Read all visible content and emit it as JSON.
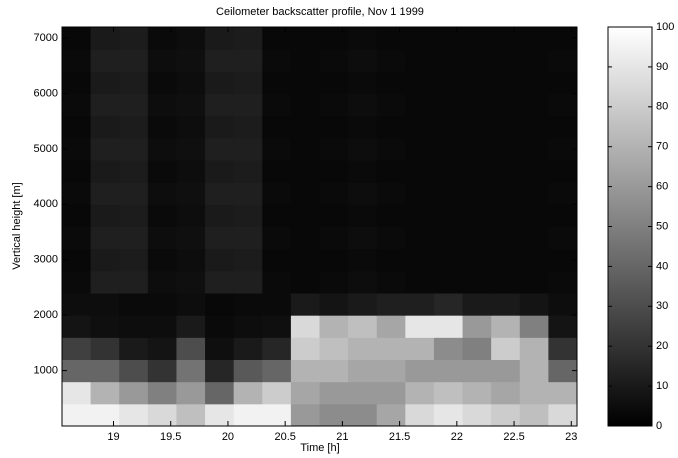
{
  "chart_data": {
    "type": "heatmap",
    "title": "Ceilometer backscatter profile, Nov 1 1999",
    "xlabel": "Time [h]",
    "ylabel": "Vertical height [m]",
    "xlim": [
      18.55,
      23.05
    ],
    "ylim": [
      0,
      7200
    ],
    "xticks": [
      19,
      19.5,
      20,
      20.5,
      21,
      21.5,
      22,
      22.5,
      23
    ],
    "yticks": [
      1000,
      2000,
      3000,
      4000,
      5000,
      6000,
      7000
    ],
    "x_edges": [
      18.55,
      18.8,
      19.05,
      19.3,
      19.55,
      19.8,
      20.05,
      20.3,
      20.55,
      20.8,
      21.05,
      21.3,
      21.55,
      21.8,
      22.05,
      22.3,
      22.55,
      22.8,
      23.05
    ],
    "y_edges": [
      0,
      400,
      800,
      1200,
      1600,
      2000,
      2400,
      2800,
      3200,
      3600,
      4000,
      4400,
      4800,
      5200,
      5600,
      6000,
      6400,
      6800,
      7200
    ],
    "z": [
      [
        95,
        95,
        90,
        85,
        75,
        90,
        95,
        95,
        60,
        55,
        55,
        65,
        85,
        90,
        85,
        80,
        75,
        85
      ],
      [
        90,
        70,
        60,
        50,
        60,
        40,
        70,
        80,
        65,
        60,
        60,
        60,
        70,
        75,
        70,
        65,
        70,
        70
      ],
      [
        40,
        40,
        30,
        20,
        45,
        15,
        35,
        40,
        70,
        70,
        65,
        65,
        60,
        60,
        60,
        60,
        70,
        40
      ],
      [
        25,
        20,
        10,
        8,
        30,
        6,
        10,
        15,
        80,
        75,
        70,
        70,
        70,
        55,
        50,
        80,
        70,
        20
      ],
      [
        8,
        6,
        5,
        5,
        10,
        4,
        5,
        6,
        85,
        70,
        75,
        65,
        90,
        90,
        60,
        70,
        50,
        8
      ],
      [
        5,
        5,
        4,
        4,
        5,
        3,
        4,
        4,
        10,
        8,
        10,
        12,
        12,
        15,
        10,
        10,
        8,
        5
      ],
      [
        4,
        12,
        12,
        5,
        6,
        12,
        12,
        4,
        3,
        4,
        5,
        4,
        3,
        3,
        3,
        3,
        3,
        4
      ],
      [
        3,
        10,
        11,
        4,
        5,
        10,
        11,
        3,
        3,
        3,
        4,
        3,
        3,
        3,
        3,
        3,
        3,
        3
      ],
      [
        4,
        12,
        12,
        5,
        6,
        12,
        12,
        4,
        3,
        4,
        5,
        4,
        3,
        3,
        3,
        3,
        3,
        4
      ],
      [
        3,
        10,
        11,
        4,
        5,
        10,
        11,
        3,
        3,
        3,
        4,
        3,
        3,
        3,
        3,
        3,
        3,
        3
      ],
      [
        4,
        12,
        12,
        5,
        6,
        12,
        12,
        4,
        3,
        4,
        5,
        4,
        3,
        3,
        3,
        3,
        3,
        4
      ],
      [
        3,
        10,
        11,
        4,
        5,
        10,
        11,
        3,
        3,
        3,
        4,
        3,
        3,
        3,
        3,
        3,
        3,
        3
      ],
      [
        4,
        12,
        12,
        5,
        6,
        12,
        12,
        4,
        3,
        4,
        5,
        4,
        3,
        3,
        3,
        3,
        3,
        4
      ],
      [
        3,
        10,
        11,
        4,
        5,
        10,
        11,
        3,
        3,
        3,
        4,
        3,
        3,
        3,
        3,
        3,
        3,
        3
      ],
      [
        4,
        12,
        12,
        5,
        6,
        12,
        12,
        4,
        3,
        4,
        5,
        4,
        3,
        3,
        3,
        3,
        3,
        4
      ],
      [
        3,
        10,
        11,
        4,
        5,
        10,
        11,
        3,
        3,
        3,
        4,
        3,
        3,
        3,
        3,
        3,
        3,
        3
      ],
      [
        4,
        12,
        12,
        5,
        6,
        12,
        12,
        4,
        3,
        4,
        5,
        4,
        3,
        3,
        3,
        3,
        3,
        4
      ],
      [
        3,
        10,
        11,
        4,
        5,
        10,
        11,
        3,
        3,
        3,
        4,
        3,
        3,
        3,
        3,
        3,
        3,
        3
      ]
    ],
    "colormap": "gray",
    "clim": [
      0,
      100
    ],
    "colorbar_ticks": [
      0,
      10,
      20,
      30,
      40,
      50,
      60,
      70,
      80,
      90,
      100
    ]
  }
}
